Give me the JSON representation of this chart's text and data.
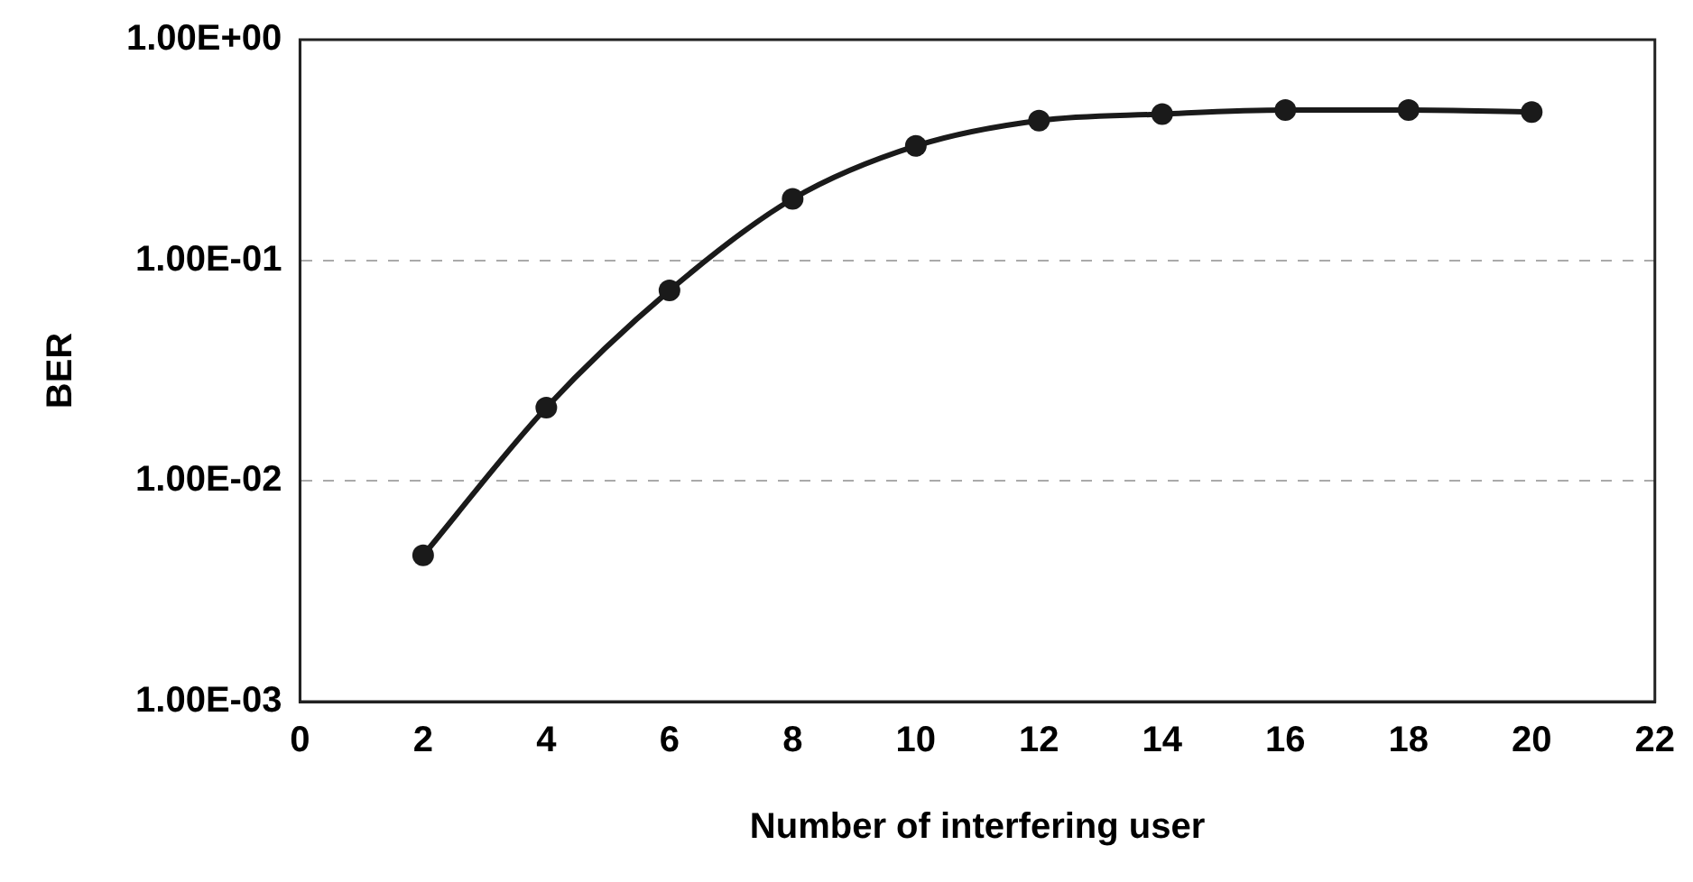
{
  "chart_data": {
    "type": "line",
    "xlabel": "Number of interfering user",
    "ylabel": "BER",
    "x": [
      2,
      4,
      6,
      8,
      10,
      12,
      14,
      16,
      18,
      20
    ],
    "series": [
      {
        "color": "#1a1a1a",
        "values": [
          0.0046,
          0.0215,
          0.073,
          0.19,
          0.33,
          0.43,
          0.46,
          0.48,
          0.48,
          0.47
        ]
      }
    ],
    "xlim": [
      0,
      22
    ],
    "xticks": [
      0,
      2,
      4,
      6,
      8,
      10,
      12,
      14,
      16,
      18,
      20,
      22
    ],
    "ylim": [
      0.001,
      1
    ],
    "yticks": [
      {
        "value": 0.001,
        "label": "1.00E-03"
      },
      {
        "value": 0.01,
        "label": "1.00E-02"
      },
      {
        "value": 0.1,
        "label": "1.00E-01"
      },
      {
        "value": 1,
        "label": "1.00E+00"
      }
    ],
    "log": "y",
    "grid": "y",
    "marker": "circle",
    "line_style": "solid",
    "legend": false
  }
}
